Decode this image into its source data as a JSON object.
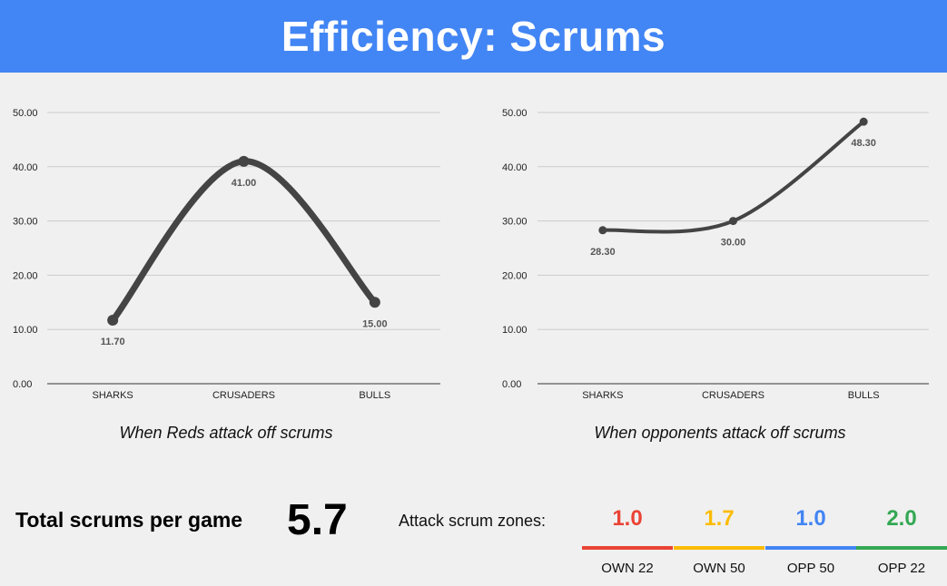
{
  "header": {
    "title": "Efficiency: Scrums"
  },
  "chart_data": [
    {
      "type": "line",
      "categories": [
        "SHARKS",
        "CRUSADERS",
        "BULLS"
      ],
      "values": [
        11.7,
        41.0,
        15.0
      ],
      "value_labels": [
        "11.70",
        "41.00",
        "15.00"
      ],
      "y_ticks": [
        "0.00",
        "10.00",
        "20.00",
        "30.00",
        "40.00",
        "50.00"
      ],
      "ylim": [
        0,
        50
      ],
      "grid": true,
      "line_color": "#444444",
      "caption": "When Reds attack off scrums"
    },
    {
      "type": "line",
      "categories": [
        "SHARKS",
        "CRUSADERS",
        "BULLS"
      ],
      "values": [
        28.3,
        30.0,
        48.3
      ],
      "value_labels": [
        "28.30",
        "30.00",
        "48.30"
      ],
      "y_ticks": [
        "0.00",
        "10.00",
        "20.00",
        "30.00",
        "40.00",
        "50.00"
      ],
      "ylim": [
        0,
        50
      ],
      "grid": true,
      "line_color": "#444444",
      "caption": "When opponents attack off scrums"
    }
  ],
  "summary": {
    "total_label": "Total scrums per game",
    "total_value": "5.7",
    "zones_label": "Attack scrum zones:",
    "zones": [
      {
        "value": "1.0",
        "label": "OWN 22",
        "color": "#ea4335"
      },
      {
        "value": "1.7",
        "label": "OWN 50",
        "color": "#fbbc04"
      },
      {
        "value": "1.0",
        "label": "OPP 50",
        "color": "#4285f4"
      },
      {
        "value": "2.0",
        "label": "OPP 22",
        "color": "#34a853"
      }
    ]
  }
}
